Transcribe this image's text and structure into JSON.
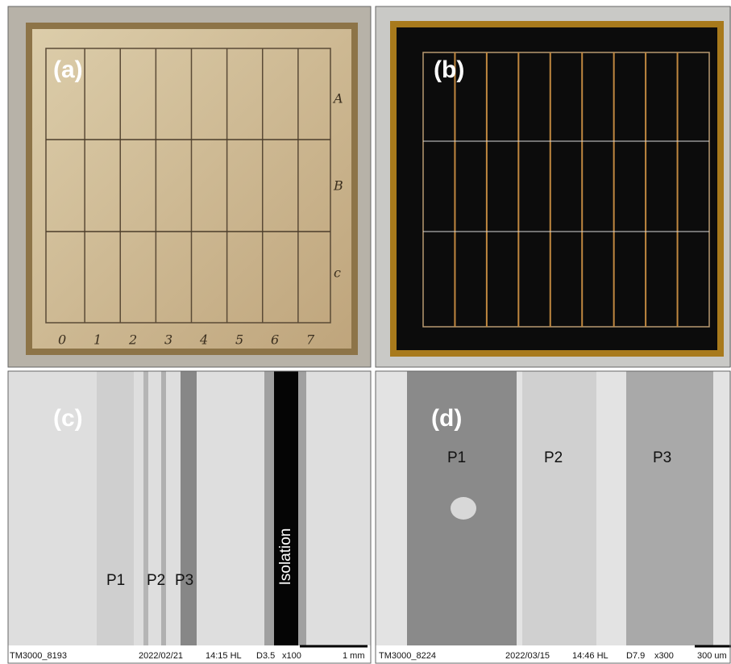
{
  "panels": [
    {
      "label": "(a)",
      "row_labels": [
        "A",
        "B",
        "c"
      ],
      "column_labels": [
        "0",
        "1",
        "2",
        "3",
        "4",
        "5",
        "6",
        "7"
      ]
    },
    {
      "label": "(b)"
    },
    {
      "label": "(c)",
      "line_labels": [
        "P1",
        "P2",
        "P3"
      ],
      "isolation_label": "Isolation",
      "footer": {
        "image_id": "TM3000_8193",
        "date": "2022/02/21",
        "time": "14:15 HL",
        "distance": "D3.5",
        "magnification": "x100",
        "scale": "1 mm"
      }
    },
    {
      "label": "(d)",
      "line_labels": [
        "P1",
        "P2",
        "P3"
      ],
      "footer": {
        "image_id": "TM3000_8224",
        "date": "2022/03/15",
        "time": "14:46 HL",
        "distance": "D7.9",
        "magnification": "x300",
        "scale": "300 um"
      }
    }
  ]
}
